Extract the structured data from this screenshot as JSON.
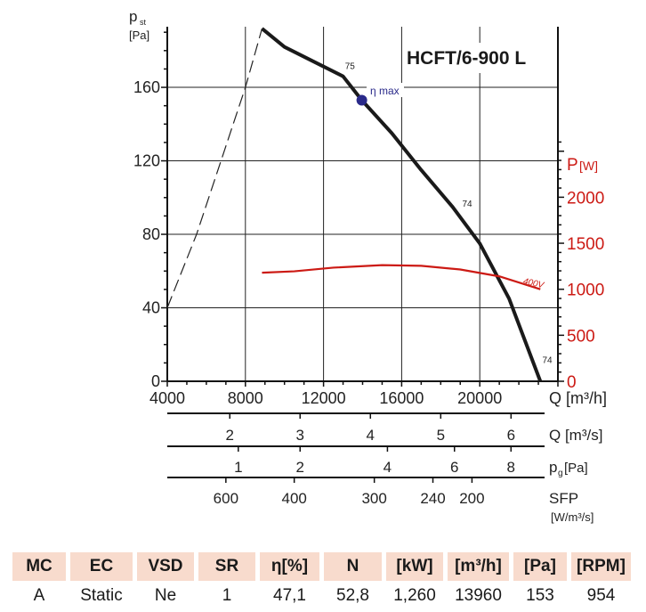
{
  "chart_data": {
    "type": "line",
    "title": "HCFT/6-900 L",
    "xlabel": "Q [m³/h]",
    "ylabel": "p_st [Pa]",
    "ylabel_main": "p",
    "ylabel_sub": "st",
    "ylabel_unit": "[Pa]",
    "y2label": "P",
    "y2label_unit": "[W]",
    "xlim": [
      4000,
      24000
    ],
    "ylim": [
      0,
      193
    ],
    "y2lim": [
      0,
      2800
    ],
    "xticks": [
      4000,
      8000,
      12000,
      16000,
      20000
    ],
    "yticks": [
      0,
      40,
      80,
      120,
      160
    ],
    "y2ticks": [
      0,
      500,
      1000,
      1500,
      2000
    ],
    "grid": true,
    "series": [
      {
        "name": "pressure-curve",
        "axis": "left",
        "x": [
          8850,
          10000,
          11500,
          13000,
          13960,
          15500,
          17000,
          18600,
          20000,
          21500,
          23100
        ],
        "y": [
          192,
          182,
          174,
          166,
          153,
          135,
          115,
          95,
          75,
          45,
          0
        ]
      },
      {
        "name": "pressure-stall-dashed",
        "axis": "left",
        "style": "dashed",
        "x": [
          4000,
          5500,
          7000,
          8000,
          8850
        ],
        "y": [
          40,
          80,
          128,
          160,
          192
        ]
      },
      {
        "name": "400V",
        "axis": "right",
        "x": [
          8850,
          10500,
          12500,
          15000,
          17000,
          19000,
          21000,
          23100
        ],
        "y": [
          1180,
          1195,
          1235,
          1262,
          1255,
          1215,
          1140,
          1000
        ]
      }
    ],
    "curve_labels": [
      {
        "text": "75",
        "x": 13100,
        "y": 170
      },
      {
        "text": "74",
        "x": 19100,
        "y": 95
      },
      {
        "text": "74",
        "x": 23200,
        "y": 10
      }
    ],
    "series_label": {
      "text": "400V",
      "x": 22200,
      "y": 1060
    },
    "eta_max": {
      "label": "η max",
      "x": 13960,
      "y": 153,
      "color": "#2a2a8a"
    },
    "secondary_axes": [
      {
        "label": "Q [m³/s]",
        "ticks": [
          2,
          3,
          4,
          5,
          6
        ],
        "q_equiv": [
          7200,
          10800,
          14400,
          18000,
          21600
        ]
      },
      {
        "label": "p",
        "label_sub": "g",
        "label_unit": "[Pa]",
        "ticks": [
          1,
          2,
          4,
          6,
          8
        ],
        "q_equiv": [
          7636,
          10800,
          15272,
          18704,
          21598
        ]
      },
      {
        "label": "SFP",
        "label_unit": "[W/m³/s]",
        "ticks": [
          600,
          400,
          300,
          240,
          200
        ],
        "q_equiv": [
          7000,
          10500,
          14600,
          17600,
          19600
        ]
      }
    ],
    "colors": {
      "curve": "#1a1a1a",
      "power": "#cc1a14",
      "eta": "#2a2a8a"
    }
  },
  "table": {
    "headers": [
      "MC",
      "EC",
      "VSD",
      "SR",
      "η[%]",
      "N",
      "[kW]",
      "[m³/h]",
      "[Pa]",
      "[RPM]"
    ],
    "values": [
      "A",
      "Static",
      "Ne",
      "1",
      "47,1",
      "52,8",
      "1,260",
      "13960",
      "153",
      "954"
    ]
  }
}
